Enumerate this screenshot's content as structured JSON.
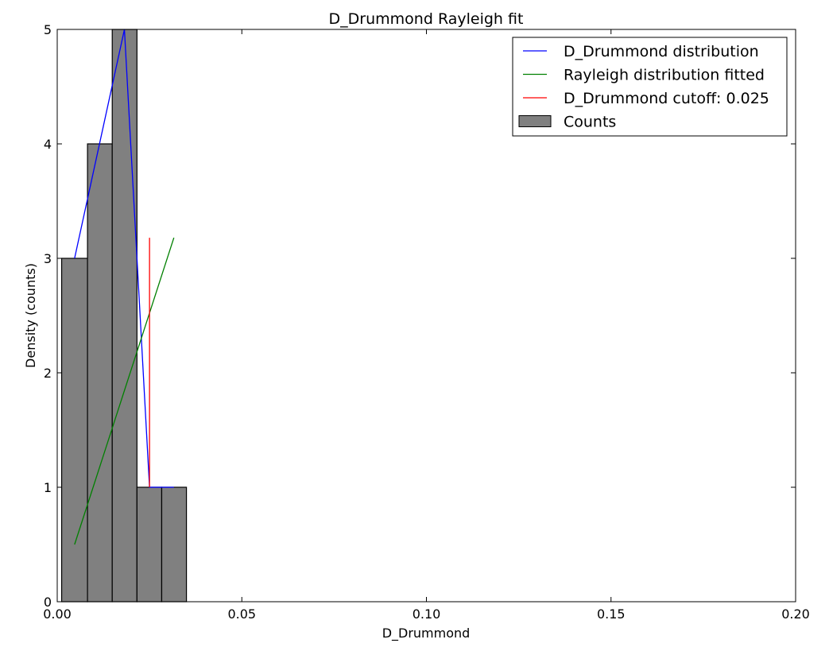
{
  "chart_data": {
    "type": "bar",
    "title": "D_Drummond Rayleigh fit",
    "xlabel": "D_Drummond",
    "ylabel": "Density (counts)",
    "xlim": [
      0.0,
      0.2
    ],
    "ylim": [
      0,
      5
    ],
    "x_ticks": [
      0.0,
      0.05,
      0.1,
      0.15,
      0.2
    ],
    "x_tick_labels": [
      "0.00",
      "0.05",
      "0.10",
      "0.15",
      "0.20"
    ],
    "y_ticks": [
      0,
      1,
      2,
      3,
      4,
      5
    ],
    "y_tick_labels": [
      "0",
      "1",
      "2",
      "3",
      "4",
      "5"
    ],
    "grid": false,
    "legend_position": "top-right",
    "histogram": {
      "name": "Counts",
      "color": "#808080",
      "bins": [
        {
          "x0": 0.0012,
          "x1": 0.0082,
          "count": 3
        },
        {
          "x0": 0.0082,
          "x1": 0.0149,
          "count": 4
        },
        {
          "x0": 0.0149,
          "x1": 0.0216,
          "count": 5
        },
        {
          "x0": 0.0216,
          "x1": 0.0283,
          "count": 1
        },
        {
          "x0": 0.0283,
          "x1": 0.035,
          "count": 1
        }
      ]
    },
    "series": [
      {
        "name": "D_Drummond distribution",
        "color": "#0000ff",
        "points": [
          [
            0.0047,
            3
          ],
          [
            0.0182,
            5
          ],
          [
            0.025,
            1
          ],
          [
            0.0316,
            1
          ]
        ]
      },
      {
        "name": "Rayleigh distribution fitted",
        "color": "#008000",
        "points": [
          [
            0.0047,
            0.5
          ],
          [
            0.0316,
            3.18
          ]
        ]
      },
      {
        "name": "D_Drummond cutoff: 0.025",
        "color": "#ff0000",
        "points": [
          [
            0.025,
            1
          ],
          [
            0.025,
            3.18
          ]
        ]
      }
    ]
  }
}
